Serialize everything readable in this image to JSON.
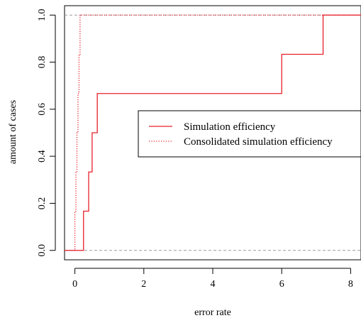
{
  "chart_data": {
    "type": "line",
    "xlabel": "error rate",
    "ylabel": "amount of cases",
    "xlim": [
      -0.3,
      8.3
    ],
    "ylim": [
      -0.04,
      1.04
    ],
    "xticks": [
      0,
      2,
      4,
      6,
      8
    ],
    "yticks": [
      0.0,
      0.2,
      0.4,
      0.6,
      0.8,
      1.0
    ],
    "xtick_labels": [
      "0",
      "2",
      "4",
      "6",
      "8"
    ],
    "ytick_labels": [
      "0.0",
      "0.2",
      "0.4",
      "0.6",
      "0.8",
      "1.0"
    ],
    "reference_lines": [
      0,
      1
    ],
    "legend_position": "center-right",
    "series": [
      {
        "name": "Simulation efficiency",
        "style": "solid",
        "color": "#e8202a",
        "x": [
          -0.3,
          0.25,
          0.25,
          0.4,
          0.4,
          0.5,
          0.5,
          0.65,
          0.65,
          6.0,
          6.0,
          7.2,
          7.2,
          8.3
        ],
        "y": [
          0.0,
          0.0,
          0.1667,
          0.1667,
          0.3333,
          0.3333,
          0.5,
          0.5,
          0.6667,
          0.6667,
          0.8333,
          0.8333,
          1.0,
          1.0
        ]
      },
      {
        "name": "Consolidated simulation efficiency",
        "style": "dotted",
        "color": "#e8202a",
        "x": [
          -0.3,
          0.0,
          0.0,
          0.03,
          0.03,
          0.06,
          0.06,
          0.09,
          0.09,
          0.12,
          0.12,
          0.15,
          0.15,
          8.3
        ],
        "y": [
          0.0,
          0.0,
          0.1667,
          0.1667,
          0.3333,
          0.3333,
          0.5,
          0.5,
          0.6667,
          0.6667,
          0.8333,
          0.8333,
          1.0,
          1.0
        ]
      }
    ]
  }
}
